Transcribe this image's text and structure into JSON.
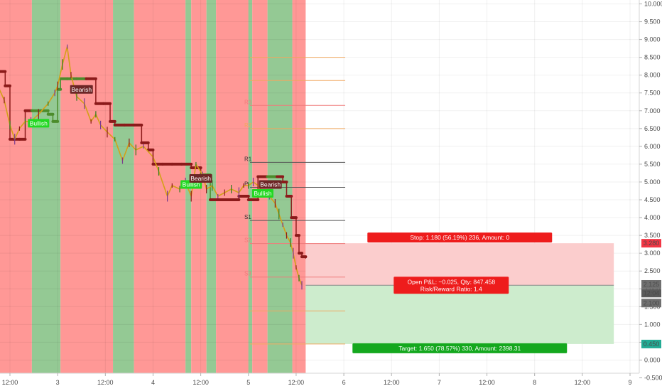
{
  "chart_data": {
    "type": "line",
    "title": "",
    "y_axis": {
      "position": "right",
      "ylim": [
        -0.55,
        10.05
      ],
      "tick_labels": [
        "10.000",
        "9.500",
        "9.000",
        "8.500",
        "8.000",
        "7.500",
        "7.000",
        "6.500",
        "6.000",
        "5.500",
        "5.000",
        "4.500",
        "4.000",
        "3.500",
        "3.000",
        "2.500",
        "2.000",
        "1.500",
        "1.000",
        "0.500",
        "0.000",
        "-0.500"
      ],
      "tick_values": [
        10,
        9.5,
        9,
        8.5,
        8,
        7.5,
        7,
        6.5,
        6,
        5.5,
        5,
        4.5,
        4,
        3.5,
        3,
        2.5,
        2,
        1.5,
        1,
        0.5,
        0,
        -0.5
      ]
    },
    "x_axis": {
      "tick_labels": [
        "12:00",
        "3",
        "12:00",
        "4",
        "12:00",
        "5",
        "12:00",
        "6",
        "12:00",
        "7",
        "12:00",
        "8",
        "12:00",
        "9"
      ],
      "tick_positions_in_days": [
        0.5,
        1,
        1.5,
        2,
        2.5,
        3,
        3.5,
        4,
        4.5,
        5,
        5.5,
        6,
        6.5,
        7
      ],
      "start_day": 0.39,
      "end_day": 7.12
    },
    "grid": true,
    "background_regions": [
      {
        "from": 0.39,
        "to": 0.73,
        "trend": "bearish"
      },
      {
        "from": 0.73,
        "to": 1.03,
        "trend": "bullish"
      },
      {
        "from": 1.03,
        "to": 1.58,
        "trend": "bearish"
      },
      {
        "from": 1.58,
        "to": 1.8,
        "trend": "bullish"
      },
      {
        "from": 1.8,
        "to": 2.34,
        "trend": "bearish"
      },
      {
        "from": 2.34,
        "to": 2.4,
        "trend": "bullish"
      },
      {
        "from": 2.4,
        "to": 2.56,
        "trend": "bearish"
      },
      {
        "from": 2.56,
        "to": 2.66,
        "trend": "bullish"
      },
      {
        "from": 2.66,
        "to": 3.0,
        "trend": "bearish"
      },
      {
        "from": 3.0,
        "to": 3.04,
        "trend": "bullish"
      },
      {
        "from": 3.04,
        "to": 3.2,
        "trend": "bearish"
      },
      {
        "from": 3.2,
        "to": 3.46,
        "trend": "bullish"
      },
      {
        "from": 3.46,
        "to": 3.6,
        "trend": "bearish"
      }
    ],
    "price_series": {
      "name": "",
      "x": [
        0.39,
        0.44,
        0.5,
        0.55,
        0.6,
        0.66,
        0.72,
        0.8,
        0.9,
        0.97,
        1.0,
        1.05,
        1.1,
        1.14,
        1.2,
        1.28,
        1.35,
        1.4,
        1.45,
        1.52,
        1.6,
        1.68,
        1.75,
        1.82,
        1.9,
        2.0,
        2.06,
        2.15,
        2.2,
        2.28,
        2.34,
        2.4,
        2.45,
        2.52,
        2.56,
        2.62,
        2.68,
        2.75,
        2.82,
        2.9,
        2.95,
        3.0,
        3.05,
        3.1,
        3.15,
        3.22,
        3.28,
        3.32,
        3.36,
        3.4,
        3.44,
        3.47,
        3.5,
        3.53,
        3.56
      ],
      "y": [
        7.6,
        7.3,
        6.6,
        6.2,
        6.5,
        6.7,
        6.7,
        6.9,
        7.2,
        7.5,
        7.7,
        8.3,
        8.8,
        8.0,
        7.4,
        7.2,
        6.7,
        6.9,
        6.6,
        6.4,
        6.2,
        5.6,
        6.1,
        5.9,
        6.0,
        5.7,
        5.3,
        4.6,
        4.9,
        4.8,
        5.0,
        4.6,
        5.5,
        5.2,
        4.8,
        4.9,
        4.6,
        4.7,
        4.8,
        4.7,
        4.9,
        4.9,
        5.0,
        4.9,
        4.7,
        4.6,
        4.4,
        4.1,
        3.8,
        3.5,
        3.3,
        3.0,
        2.6,
        2.3,
        2.1
      ]
    },
    "stop_series": {
      "name": "",
      "x": [
        0.39,
        0.45,
        0.5,
        0.54,
        0.6,
        0.66,
        0.73,
        0.82,
        0.9,
        0.95,
        1.0,
        1.03,
        1.1,
        1.2,
        1.3,
        1.4,
        1.48,
        1.55,
        1.6,
        1.7,
        1.8,
        1.88,
        1.95,
        2.0,
        2.1,
        2.2,
        2.3,
        2.4,
        2.5,
        2.56,
        2.6,
        2.7,
        2.8,
        2.9,
        3.0,
        3.05,
        3.1,
        3.2,
        3.3,
        3.36,
        3.4,
        3.45,
        3.5,
        3.53,
        3.56,
        3.6
      ],
      "y": [
        8.1,
        7.7,
        6.2,
        6.2,
        6.2,
        7.0,
        7.0,
        7.0,
        6.9,
        6.7,
        7.6,
        7.9,
        7.9,
        7.9,
        7.9,
        7.2,
        7.2,
        6.7,
        6.6,
        6.6,
        6.6,
        6.1,
        5.9,
        5.5,
        5.5,
        5.5,
        5.5,
        5.4,
        5.2,
        5.2,
        4.5,
        4.5,
        4.5,
        4.6,
        4.5,
        4.5,
        5.15,
        5.15,
        5.15,
        5.0,
        4.6,
        4.0,
        3.5,
        3.0,
        2.9,
        2.85
      ],
      "regime_changes": [
        {
          "at": 0.69,
          "trend": "bullish"
        },
        {
          "at": 1.25,
          "trend": "bearish"
        },
        {
          "at": 2.48,
          "trend": "bullish"
        },
        {
          "at": 2.58,
          "trend": "bearish"
        },
        {
          "at": 3.14,
          "trend": "bullish"
        },
        {
          "at": 3.22,
          "trend": "bearish"
        }
      ]
    },
    "pivot_levels": [
      {
        "label": "",
        "value": 8.5,
        "color": "#f0a860"
      },
      {
        "label": "",
        "value": 7.85,
        "color": "#f0a860"
      },
      {
        "label": "R3",
        "value": 7.15,
        "color": "#ef7b7b"
      },
      {
        "label": "R2",
        "value": 6.5,
        "color": "#f0a860"
      },
      {
        "label": "R1",
        "value": 5.55,
        "color": "#555555"
      },
      {
        "label": "P",
        "value": 4.85,
        "color": "#555555"
      },
      {
        "label": "S1",
        "value": 3.92,
        "color": "#555555"
      },
      {
        "label": "S2",
        "value": 3.27,
        "color": "#ef7b7b"
      },
      {
        "label": "S3",
        "value": 2.33,
        "color": "#ef7b7b"
      },
      {
        "label": "",
        "value": 1.38,
        "color": "#f0a860"
      },
      {
        "label": "",
        "value": 0.45,
        "color": "#f0a860"
      }
    ],
    "signals": [
      {
        "label": "Bullish",
        "x": 0.8,
        "y": 6.65,
        "type": "bullish"
      },
      {
        "label": "Bearish",
        "x": 1.25,
        "y": 7.6,
        "type": "bearish"
      },
      {
        "label": "Bullish",
        "x": 2.4,
        "y": 4.93,
        "type": "bullish"
      },
      {
        "label": "Bearish",
        "x": 2.5,
        "y": 5.1,
        "type": "bearish"
      },
      {
        "label": "Bullish",
        "x": 3.15,
        "y": 4.68,
        "type": "bullish"
      },
      {
        "label": "Bearish",
        "x": 3.23,
        "y": 4.93,
        "type": "bearish"
      }
    ],
    "position": {
      "from": 3.6,
      "to": 6.83,
      "entry": 2.1,
      "stop": 3.28,
      "target": 0.45,
      "stop_label": "Stop: 1.180 (56.19%) 236, Amount: 0",
      "pnl_label": "Open P&L: −0.025, Qty: 847.458",
      "rr_label": "Risk/Reward Ratio: 1.4",
      "target_label": "Target: 1.650 (78.57%) 330, Amount: 2398.31"
    },
    "price_badges": [
      {
        "label": "3.280",
        "value": 3.28,
        "color": "#f23645"
      },
      {
        "label": "2.125",
        "value": 2.125,
        "color": "#6f6f6f"
      },
      {
        "label": "12:04",
        "value": 1.88,
        "color": "#5a5a5a"
      },
      {
        "label": "2.100",
        "value": 1.6,
        "color": "#6f6f6f"
      },
      {
        "label": "0.450",
        "value": 0.45,
        "color": "#22ab94"
      }
    ],
    "colors": {
      "bearish_bg": "#ff9896",
      "bullish_bg": "#94c994",
      "bullish_stop": "#4c8c2b",
      "bearish_stop": "#8b1a1a",
      "signal_bull": "#22d822",
      "signal_bear": "#6d2626",
      "stop_zone": "#fbcdcd",
      "target_zone": "#cdeccd",
      "stop_tag": "#ee1c1c",
      "target_tag": "#14a81e",
      "price_line": "#d4a017"
    }
  }
}
